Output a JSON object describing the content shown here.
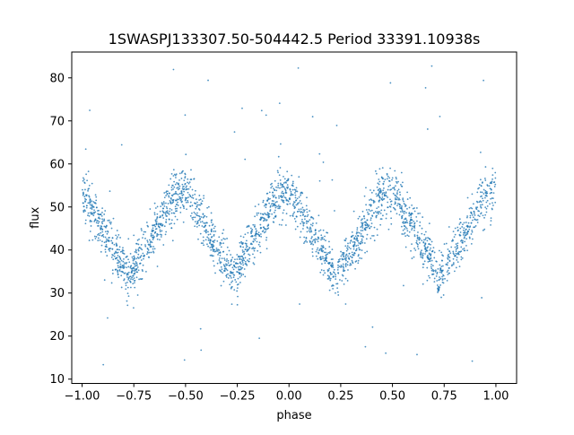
{
  "chart_data": {
    "type": "scatter",
    "title": "1SWASPJ133307.50-504442.5 Period 33391.10938s",
    "xlabel": "phase",
    "ylabel": "flux",
    "xlim": [
      -1.05,
      1.1
    ],
    "ylim": [
      9,
      86
    ],
    "xticks": [
      -1.0,
      -0.75,
      -0.5,
      -0.25,
      0.0,
      0.25,
      0.5,
      0.75,
      1.0
    ],
    "xtick_labels": [
      "−1.00",
      "−0.75",
      "−0.50",
      "−0.25",
      "0.00",
      "0.25",
      "0.50",
      "0.75",
      "1.00"
    ],
    "yticks": [
      10,
      20,
      30,
      40,
      50,
      60,
      70,
      80
    ],
    "ytick_labels": [
      "10",
      "20",
      "30",
      "40",
      "50",
      "60",
      "70",
      "80"
    ],
    "grid": false,
    "series": [
      {
        "color": "#1f77b4",
        "marker": "point",
        "phase_range": [
          -1.0,
          1.0
        ],
        "period_in_phase": 0.5,
        "profile": {
          "phase_fraction": [
            0.0,
            0.1,
            0.225,
            0.35,
            0.45,
            0.5
          ],
          "flux_center": [
            53.5,
            45,
            34,
            44,
            53,
            53.5
          ],
          "flux_spread": [
            3.5,
            3.0,
            3.0,
            3.0,
            3.5,
            3.5
          ]
        },
        "minima": [
          {
            "phase": -0.775,
            "flux": 33.5
          },
          {
            "phase": -0.275,
            "flux": 33.0
          },
          {
            "phase": 0.225,
            "flux": 33.5
          },
          {
            "phase": 0.725,
            "flux": 33.0
          }
        ],
        "maxima": [
          {
            "phase": -1.0,
            "flux": 53.5
          },
          {
            "phase": -0.525,
            "flux": 53.5
          },
          {
            "phase": 0.0,
            "flux": 54.0
          },
          {
            "phase": 0.475,
            "flux": 53.5
          },
          {
            "phase": 1.0,
            "flux": 53.5
          }
        ],
        "outlier_range": [
          13,
          83
        ]
      }
    ]
  }
}
